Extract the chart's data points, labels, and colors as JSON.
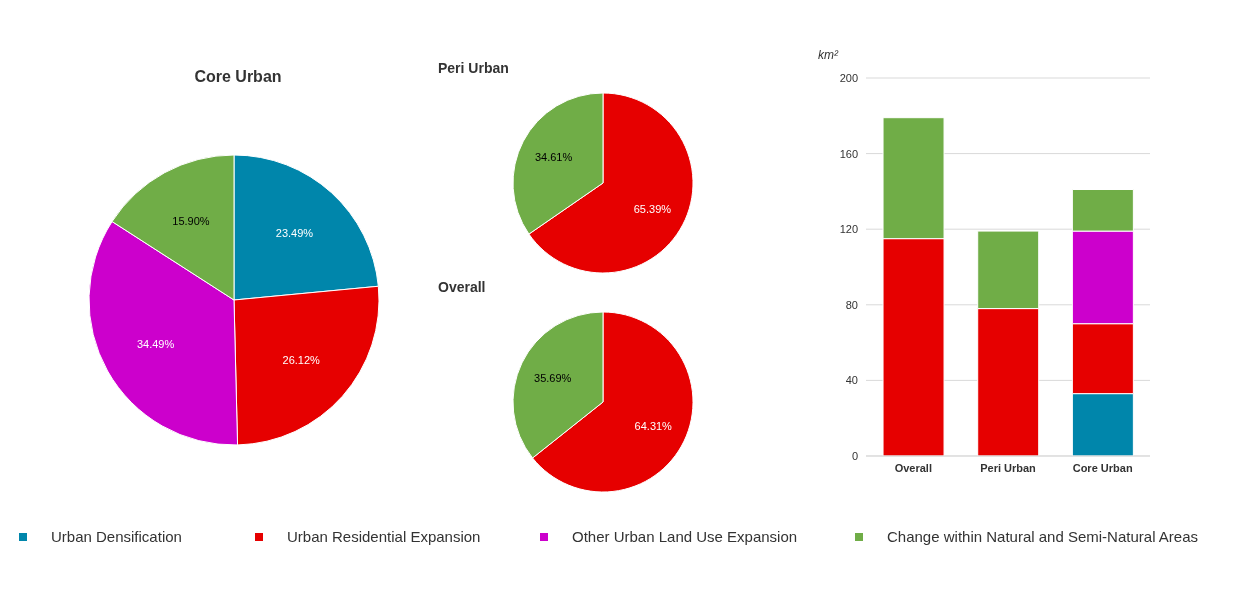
{
  "chart_data": [
    {
      "type": "pie",
      "title": "Core Urban",
      "legend": "bottom",
      "categories": [
        "Urban Densification",
        "Urban Residential Expansion",
        "Other Urban Land Use Expansion",
        "Change within Natural and Semi-Natural Areas"
      ],
      "values": [
        23.49,
        26.12,
        34.49,
        15.9
      ],
      "value_labels": [
        "23.49%",
        "26.12%",
        "34.49%",
        "15.90%"
      ],
      "colors": [
        "#0086ab",
        "#e60000",
        "#cc00cc",
        "#70ad47"
      ]
    },
    {
      "type": "pie",
      "title": "Peri Urban",
      "categories": [
        null,
        null
      ],
      "values": [
        65.39,
        34.61
      ],
      "value_labels": [
        "65.39%",
        "34.61%"
      ],
      "colors": [
        "#e60000",
        "#70ad47"
      ]
    },
    {
      "type": "pie",
      "title": "Overall",
      "categories": [
        null,
        null
      ],
      "values": [
        64.31,
        35.69
      ],
      "value_labels": [
        "64.31%",
        "35.69%"
      ],
      "colors": [
        "#e60000",
        "#70ad47"
      ]
    },
    {
      "type": "bar",
      "stacked": true,
      "ylabel": "km²",
      "categories": [
        "Overall",
        "Peri Urban",
        "Core Urban"
      ],
      "ylim": [
        0,
        200
      ],
      "yticks": [
        0,
        40,
        80,
        120,
        160,
        200
      ],
      "grid": "y",
      "series": [
        {
          "color": "#0086ab",
          "values": [
            0,
            0,
            33
          ]
        },
        {
          "color": "#e60000",
          "values": [
            115,
            78,
            37
          ]
        },
        {
          "color": "#cc00cc",
          "values": [
            0,
            0,
            49
          ]
        },
        {
          "color": "#70ad47",
          "values": [
            64,
            41,
            22
          ]
        }
      ]
    }
  ]
}
